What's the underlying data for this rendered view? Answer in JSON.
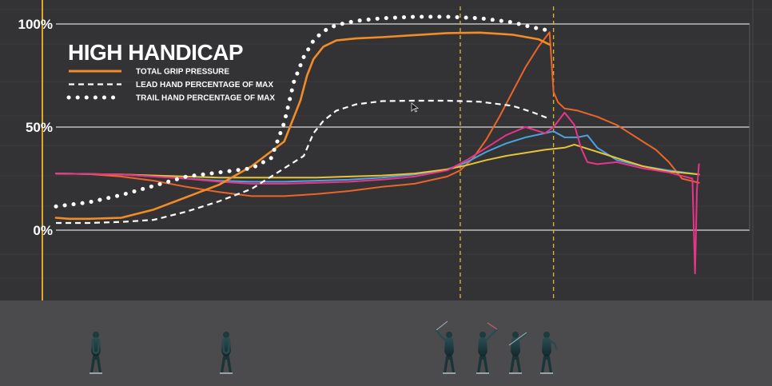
{
  "chart_data": {
    "type": "line",
    "title": "HIGH HANDICAP",
    "xlabel": "",
    "ylabel": "",
    "ylim": [
      0,
      100
    ],
    "yticks": [
      "0%",
      "50%",
      "100%"
    ],
    "xlim": [
      0,
      100
    ],
    "grid": true,
    "legend_position": "top-left",
    "phase_markers_x": [
      62,
      76.3
    ],
    "series": [
      {
        "name": "TOTAL GRIP PRESSURE",
        "color": "#f28c28",
        "style": "solid",
        "x": [
          0,
          2,
          5,
          10,
          15,
          20,
          25,
          30,
          35,
          37.5,
          38.5,
          39.5,
          41,
          43,
          46,
          50,
          55,
          60,
          65,
          70,
          74,
          75.7
        ],
        "y": [
          6,
          5.5,
          5.5,
          6,
          10,
          16,
          22,
          31,
          43,
          63,
          75,
          83,
          89,
          92,
          93,
          93.6,
          94.6,
          95.6,
          95.8,
          94.8,
          92.6,
          90
        ]
      },
      {
        "name": "LEAD HAND PERCENTAGE OF MAX",
        "color": "#ffffff",
        "style": "dashed",
        "x": [
          0,
          5,
          10,
          15,
          20,
          25,
          30,
          35,
          38,
          39.5,
          41,
          43,
          46,
          50,
          55,
          60,
          65,
          70,
          73,
          75.7
        ],
        "y": [
          3.5,
          3.5,
          4,
          5,
          9,
          14,
          20,
          30,
          36,
          47,
          53,
          58,
          61,
          62.6,
          62.8,
          62.8,
          62.3,
          60.3,
          57.3,
          54
        ]
      },
      {
        "name": "TRAIL HAND PERCENTAGE OF MAX",
        "color": "#ffffff",
        "style": "dotted",
        "x": [
          0,
          5,
          10,
          15,
          20,
          25,
          30,
          33,
          35,
          36.5,
          38,
          39.5,
          41,
          43,
          46,
          50,
          55,
          60,
          65,
          70,
          73,
          75.7
        ],
        "y": [
          11.5,
          13.5,
          17,
          21.5,
          26,
          28,
          30,
          35,
          52,
          72,
          84,
          92,
          96.5,
          99.5,
          101.5,
          102.8,
          103.5,
          103.5,
          102.8,
          100.8,
          98.4,
          96.8
        ]
      },
      {
        "name": "",
        "color": "#ec6428",
        "style": "solid",
        "x": [
          0,
          5,
          10,
          15,
          20,
          25,
          30,
          35,
          40,
          45,
          50,
          55,
          60,
          62,
          64,
          66,
          68,
          70,
          72,
          74,
          75.7,
          76.3,
          77,
          78,
          80,
          83,
          86,
          88,
          90,
          92,
          94,
          96,
          98.6
        ],
        "y": [
          27.5,
          27.2,
          26,
          24,
          21,
          18.5,
          16.5,
          16.5,
          17.5,
          19,
          21,
          22.5,
          26,
          29,
          35,
          44,
          55,
          67,
          79,
          89,
          96,
          67,
          62,
          59,
          58,
          55,
          51,
          47,
          43,
          39,
          33,
          25,
          23
        ]
      },
      {
        "name": "",
        "color": "#4aa3e0",
        "style": "solid",
        "x": [
          0,
          5,
          10,
          15,
          20,
          25,
          30,
          35,
          40,
          45,
          50,
          55,
          60,
          63,
          66,
          69,
          72,
          75,
          76.3,
          78,
          80,
          81.5,
          83,
          86,
          90,
          94,
          98.6
        ],
        "y": [
          27.5,
          27.2,
          27,
          26,
          25,
          24,
          23.5,
          23.5,
          24,
          24.5,
          25.5,
          27,
          29.5,
          33,
          38,
          42,
          45,
          47,
          48,
          45,
          45,
          46,
          40,
          34,
          31,
          29,
          27
        ]
      },
      {
        "name": "",
        "color": "#e8348a",
        "style": "solid",
        "x": [
          0,
          5,
          10,
          15,
          20,
          25,
          30,
          35,
          40,
          45,
          50,
          55,
          60,
          63,
          66,
          69,
          72,
          75,
          76.3,
          78,
          79.5,
          80.5,
          81.5,
          83,
          86,
          90,
          94,
          97.6,
          98,
          98.3,
          98.6
        ],
        "y": [
          27.5,
          27.2,
          27,
          26,
          25,
          23.5,
          22.5,
          22.5,
          23,
          23.5,
          24.5,
          26,
          29,
          34,
          40,
          46,
          50,
          47,
          50,
          57,
          51,
          40,
          33,
          32,
          33,
          30,
          28,
          25,
          -21,
          20,
          32
        ]
      },
      {
        "name": "",
        "color": "#e6c43a",
        "style": "solid",
        "x": [
          0,
          5,
          10,
          15,
          20,
          25,
          30,
          35,
          40,
          45,
          50,
          55,
          60,
          63,
          66,
          69,
          72,
          75,
          78,
          79.5,
          81,
          84,
          87,
          90,
          94,
          98.6
        ],
        "y": [
          27.5,
          27.2,
          27,
          26.5,
          26,
          25.5,
          25.5,
          25.5,
          25.5,
          26,
          26.5,
          27.5,
          29.5,
          31.5,
          34,
          36,
          37.5,
          39,
          40,
          41.5,
          40,
          37,
          34,
          31,
          28.5,
          27
        ]
      }
    ]
  }
}
